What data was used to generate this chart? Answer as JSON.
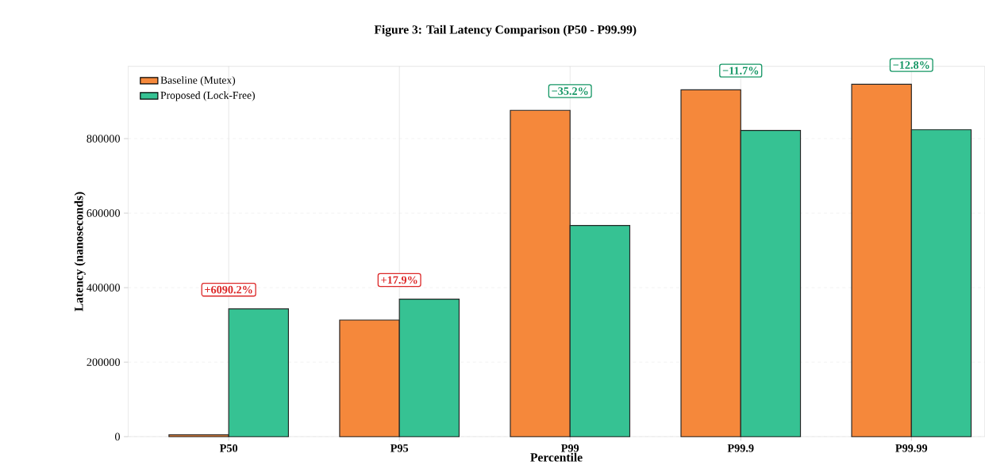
{
  "chart_data": {
    "type": "bar",
    "title": "Figure 3: Tail Latency Comparison (P50 - P99.99)",
    "xlabel": "Percentile",
    "ylabel": "Latency (nanoseconds)",
    "categories": [
      "P50",
      "P95",
      "P99",
      "P99.9",
      "P99.99"
    ],
    "series": [
      {
        "name": "Baseline (Mutex)",
        "color": "#f5883b",
        "values": [
          5000,
          313000,
          876000,
          931000,
          946000
        ]
      },
      {
        "name": "Proposed (Lock-Free)",
        "color": "#36c293",
        "values": [
          343000,
          369000,
          567000,
          822000,
          824000
        ]
      }
    ],
    "ylim": [
      0,
      994000
    ],
    "yticks": [
      0,
      200000,
      400000,
      600000,
      800000
    ],
    "grid": true,
    "legend": "top left",
    "annotations": [
      "+6090.2%",
      "+17.9%",
      "−35.2%",
      "−11.7%",
      "−12.8%"
    ]
  }
}
